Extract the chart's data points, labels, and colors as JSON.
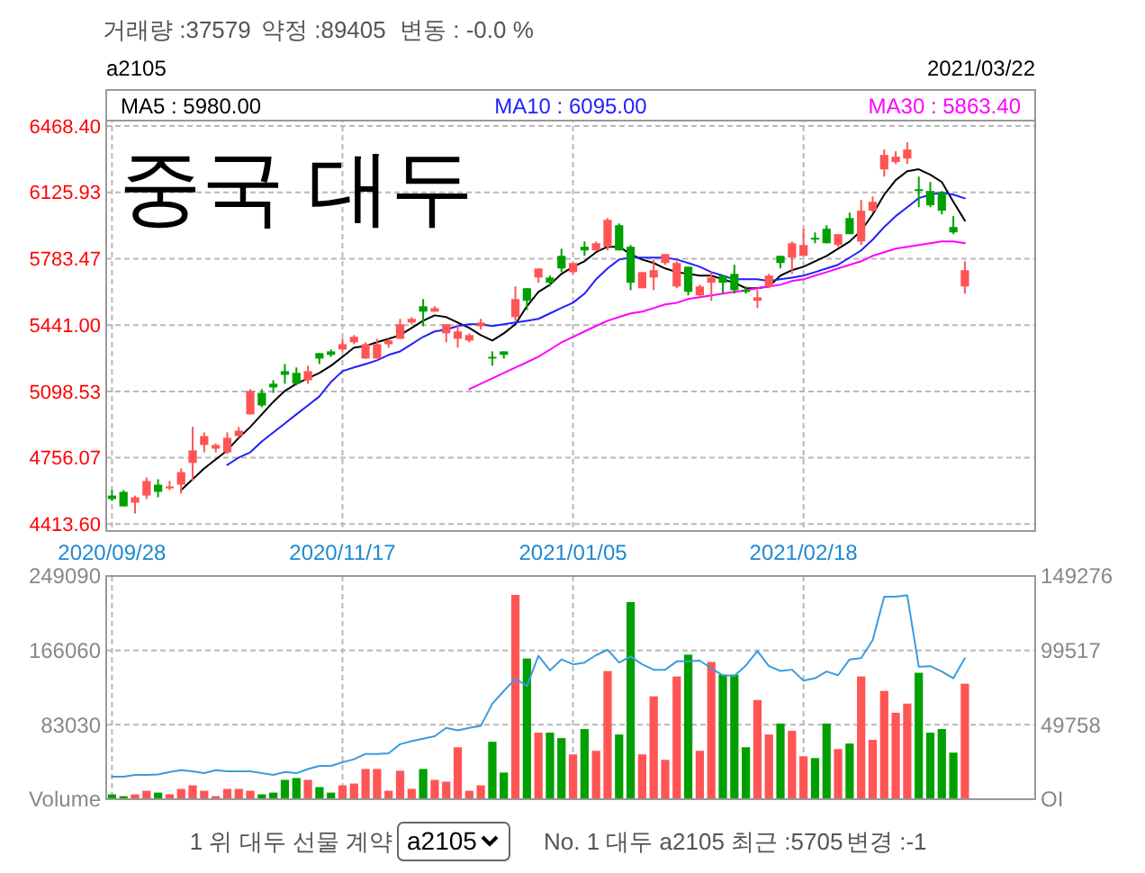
{
  "chart_data": [
    {
      "type": "candlestick",
      "title": "a2105",
      "subtitle": "2021/03/22",
      "annotations": [
        "중국 대두",
        "거래량 :37579",
        "약정 :89405",
        "변동 : -0.0 %"
      ],
      "categories": [
        "2020/09/28",
        null,
        null,
        null,
        null,
        null,
        null,
        null,
        null,
        null,
        null,
        null,
        null,
        null,
        null,
        null,
        null,
        null,
        null,
        null,
        "2020/11/17",
        null,
        null,
        null,
        null,
        null,
        null,
        null,
        null,
        null,
        null,
        null,
        null,
        null,
        null,
        null,
        null,
        null,
        null,
        null,
        "2021/01/05",
        null,
        null,
        null,
        null,
        null,
        null,
        null,
        null,
        null,
        null,
        null,
        null,
        null,
        null,
        null,
        null,
        null,
        null,
        null,
        "2021/02/18",
        null,
        null,
        null,
        null,
        null,
        null,
        null,
        null,
        null,
        null,
        null,
        null,
        null,
        null
      ],
      "ohlc": [
        [
          4561,
          4589,
          4533,
          4543
        ],
        [
          4580,
          4589,
          4505,
          4505
        ],
        [
          4524,
          4561,
          4468,
          4552
        ],
        [
          4561,
          4654,
          4543,
          4636
        ],
        [
          4617,
          4645,
          4552,
          4580
        ],
        [
          4598,
          4636,
          4589,
          4608
        ],
        [
          4617,
          4701,
          4571,
          4682
        ],
        [
          4729,
          4915,
          4636,
          4794
        ],
        [
          4822,
          4887,
          4784,
          4868
        ],
        [
          4803,
          4831,
          4784,
          4822
        ],
        [
          4784,
          4887,
          4775,
          4859
        ],
        [
          4868,
          4915,
          4859,
          4896
        ],
        [
          4980,
          5110,
          4980,
          5101
        ],
        [
          5091,
          5110,
          5017,
          5026
        ],
        [
          5138,
          5156,
          5091,
          5119
        ],
        [
          5203,
          5240,
          5138,
          5184
        ],
        [
          5194,
          5222,
          5129,
          5138
        ],
        [
          5156,
          5231,
          5138,
          5203
        ],
        [
          5296,
          5296,
          5240,
          5268
        ],
        [
          5305,
          5315,
          5277,
          5287
        ],
        [
          5315,
          5370,
          5305,
          5342
        ],
        [
          5352,
          5389,
          5342,
          5380
        ],
        [
          5268,
          5352,
          5268,
          5342
        ],
        [
          5268,
          5370,
          5268,
          5342
        ],
        [
          5342,
          5370,
          5324,
          5361
        ],
        [
          5370,
          5473,
          5370,
          5445
        ],
        [
          5454,
          5482,
          5445,
          5473
        ],
        [
          5538,
          5575,
          5435,
          5510
        ],
        [
          5510,
          5538,
          5510,
          5528
        ],
        [
          5398,
          5445,
          5352,
          5445
        ],
        [
          5370,
          5445,
          5324,
          5408
        ],
        [
          5361,
          5398,
          5352,
          5389
        ],
        [
          5435,
          5473,
          5417,
          5454
        ],
        [
          5277,
          5305,
          5231,
          5268
        ],
        [
          5305,
          5305,
          5268,
          5287
        ],
        [
          5482,
          5640,
          5463,
          5575
        ],
        [
          5631,
          5631,
          5519,
          5566
        ],
        [
          5686,
          5733,
          5659,
          5733
        ],
        [
          5686,
          5696,
          5640,
          5659
        ],
        [
          5798,
          5835,
          5714,
          5733
        ],
        [
          5714,
          5761,
          5705,
          5761
        ],
        [
          5845,
          5872,
          5798,
          5826
        ],
        [
          5826,
          5872,
          5826,
          5863
        ],
        [
          5845,
          5993,
          5826,
          5984
        ],
        [
          5956,
          5965,
          5826,
          5826
        ],
        [
          5845,
          5854,
          5621,
          5659
        ],
        [
          5631,
          5714,
          5631,
          5714
        ],
        [
          5686,
          5779,
          5621,
          5724
        ],
        [
          5761,
          5807,
          5752,
          5807
        ],
        [
          5640,
          5770,
          5631,
          5761
        ],
        [
          5742,
          5742,
          5594,
          5612
        ],
        [
          5594,
          5649,
          5584,
          5640
        ],
        [
          5659,
          5714,
          5566,
          5686
        ],
        [
          5696,
          5696,
          5603,
          5659
        ],
        [
          5705,
          5752,
          5603,
          5621
        ],
        [
          5621,
          5640,
          5603,
          5612
        ],
        [
          5566,
          5621,
          5528,
          5584
        ],
        [
          5640,
          5705,
          5631,
          5696
        ],
        [
          5798,
          5798,
          5733,
          5761
        ],
        [
          5789,
          5872,
          5705,
          5863
        ],
        [
          5798,
          5938,
          5798,
          5854
        ],
        [
          5891,
          5919,
          5863,
          5882
        ],
        [
          5938,
          5956,
          5863,
          5863
        ],
        [
          5854,
          5910,
          5845,
          5910
        ],
        [
          5993,
          6021,
          5910,
          5910
        ],
        [
          5872,
          6086,
          5854,
          6031
        ],
        [
          6031,
          6105,
          6021,
          6077
        ],
        [
          6244,
          6347,
          6207,
          6319
        ],
        [
          6282,
          6338,
          6272,
          6310
        ],
        [
          6300,
          6384,
          6272,
          6347
        ],
        [
          6142,
          6207,
          6049,
          6133
        ],
        [
          6133,
          6179,
          6049,
          6059
        ],
        [
          6124,
          6133,
          6012,
          6031
        ],
        [
          5947,
          6003,
          5910,
          5919
        ],
        [
          5640,
          5770,
          5603,
          5724
        ]
      ],
      "colors": [
        "#00a000",
        "#00a000",
        "#ff5555",
        "#ff5555",
        "#00a000",
        "#ff5555",
        "#ff5555",
        "#ff5555",
        "#ff5555",
        "#ff5555",
        "#ff5555",
        "#ff5555",
        "#ff5555",
        "#00a000",
        "#00a000",
        "#00a000",
        "#00a000",
        "#ff5555",
        "#00a000",
        "#00a000",
        "#ff5555",
        "#ff5555",
        "#ff5555",
        "#ff5555",
        "#ff5555",
        "#ff5555",
        "#ff5555",
        "#00a000",
        "#ff5555",
        "#ff5555",
        "#ff5555",
        "#ff5555",
        "#ff5555",
        "#00a000",
        "#00a000",
        "#ff5555",
        "#00a000",
        "#ff5555",
        "#00a000",
        "#00a000",
        "#ff5555",
        "#00a000",
        "#ff5555",
        "#ff5555",
        "#00a000",
        "#00a000",
        "#ff5555",
        "#ff5555",
        "#ff5555",
        "#ff5555",
        "#00a000",
        "#ff5555",
        "#ff5555",
        "#00a000",
        "#00a000",
        "#00a000",
        "#ff5555",
        "#ff5555",
        "#00a000",
        "#ff5555",
        "#ff5555",
        "#00a000",
        "#00a000",
        "#ff5555",
        "#00a000",
        "#ff5555",
        "#ff5555",
        "#ff5555",
        "#ff5555",
        "#ff5555",
        "#00a000",
        "#00a000",
        "#00a000",
        "#00a000",
        "#ff5555"
      ],
      "series": [
        {
          "type": "line",
          "name": "MA5 : 5980.00",
          "color": "#000000",
          "values": [
            null,
            null,
            null,
            null,
            null,
            null,
            4589,
            4645,
            4701,
            4747,
            4794,
            4859,
            4915,
            4980,
            5045,
            5101,
            5138,
            5166,
            5194,
            5231,
            5277,
            5324,
            5333,
            5352,
            5370,
            5389,
            5426,
            5463,
            5491,
            5482,
            5454,
            5426,
            5389,
            5361,
            5398,
            5445,
            5538,
            5612,
            5649,
            5705,
            5742,
            5770,
            5817,
            5845,
            5845,
            5807,
            5779,
            5761,
            5733,
            5714,
            5705,
            5696,
            5696,
            5677,
            5659,
            5631,
            5631,
            5640,
            5696,
            5724,
            5742,
            5770,
            5798,
            5835,
            5872,
            5928,
            6012,
            6114,
            6189,
            6235,
            6245,
            6217,
            6179,
            6077,
            5980
          ]
        },
        {
          "type": "line",
          "name": "MA10 : 6095.00",
          "color": "#2020ff",
          "values": [
            null,
            null,
            null,
            null,
            null,
            null,
            null,
            null,
            null,
            null,
            4719,
            4757,
            4784,
            4840,
            4887,
            4933,
            4980,
            5026,
            5073,
            5147,
            5203,
            5222,
            5240,
            5259,
            5287,
            5305,
            5342,
            5380,
            5408,
            5417,
            5436,
            5445,
            5445,
            5436,
            5445,
            5454,
            5463,
            5473,
            5501,
            5529,
            5556,
            5603,
            5677,
            5733,
            5779,
            5789,
            5789,
            5789,
            5789,
            5779,
            5761,
            5742,
            5714,
            5696,
            5677,
            5677,
            5677,
            5668,
            5677,
            5686,
            5696,
            5714,
            5733,
            5752,
            5789,
            5826,
            5882,
            5947,
            6003,
            6049,
            6096,
            6114,
            6124,
            6114,
            6095
          ]
        },
        {
          "type": "line",
          "name": "MA30 : 5863.40",
          "color": "#ff00ff",
          "values": [
            null,
            null,
            null,
            null,
            null,
            null,
            null,
            null,
            null,
            null,
            null,
            null,
            null,
            null,
            null,
            null,
            null,
            null,
            null,
            null,
            null,
            null,
            null,
            null,
            null,
            null,
            null,
            null,
            null,
            null,
            null,
            5110,
            5138,
            5166,
            5194,
            5222,
            5249,
            5277,
            5314,
            5352,
            5380,
            5408,
            5436,
            5463,
            5482,
            5501,
            5510,
            5528,
            5547,
            5556,
            5575,
            5584,
            5594,
            5603,
            5612,
            5621,
            5631,
            5640,
            5649,
            5668,
            5677,
            5696,
            5714,
            5733,
            5752,
            5770,
            5798,
            5817,
            5835,
            5845,
            5854,
            5863,
            5872,
            5872,
            5863.4
          ]
        }
      ],
      "ylim": [
        4378,
        6654
      ],
      "yticks": [
        {
          "value": 4413.6,
          "label": "4413.60"
        },
        {
          "value": 4756.07,
          "label": "4756.07"
        },
        {
          "value": 5098.53,
          "label": "5098.53"
        },
        {
          "value": 5441,
          "label": "5441.00"
        },
        {
          "value": 5783.47,
          "label": "5783.47"
        },
        {
          "value": 6125.93,
          "label": "6125.93"
        },
        {
          "value": 6468.4,
          "label": "6468.40"
        }
      ],
      "grid": true,
      "legend": "top"
    },
    {
      "type": "bar",
      "annotations": [
        "1 위 대두 선물 계약",
        "a2105",
        "No. 1 대두 a2105 최근 :5705",
        "변경 :-1"
      ],
      "categories": [
        "2020/09/28",
        null,
        null,
        null,
        null,
        null,
        null,
        null,
        null,
        null,
        null,
        null,
        null,
        null,
        null,
        null,
        null,
        null,
        null,
        null,
        "2020/11/17",
        null,
        null,
        null,
        null,
        null,
        null,
        null,
        null,
        null,
        null,
        null,
        null,
        null,
        null,
        null,
        null,
        null,
        null,
        null,
        "2021/01/05",
        null,
        null,
        null,
        null,
        null,
        null,
        null,
        null,
        null,
        null,
        null,
        null,
        null,
        null,
        null,
        null,
        null,
        null,
        null,
        "2021/02/18",
        null,
        null,
        null,
        null,
        null,
        null,
        null,
        null,
        null,
        null,
        null,
        null,
        null,
        null
      ],
      "series": [
        {
          "values": [
            5400,
            3400,
            5400,
            9450,
            7400,
            5400,
            11500,
            15500,
            9450,
            3400,
            11500,
            11500,
            9450,
            5400,
            7400,
            21600,
            23600,
            21600,
            13500,
            7400,
            15500,
            17500,
            33750,
            33750,
            9450,
            31700,
            11500,
            33750,
            21600,
            19600,
            58000,
            9450,
            15500,
            64100,
            29700,
            228000,
            157000,
            74250,
            74250,
            68200,
            50000,
            78300,
            54000,
            143000,
            72200,
            220000,
            50000,
            114800,
            43900,
            137000,
            161300,
            54000,
            153200,
            139000,
            139000,
            58000,
            110700,
            72200,
            84400,
            76300,
            47900,
            45900,
            84400,
            56000,
            62100,
            137000,
            66200,
            120800,
            96500,
            106700,
            141100,
            74250,
            78300,
            52000,
            128900
          ],
          "colors": [
            "#00a000",
            "#00a000",
            "#ff5555",
            "#ff5555",
            "#00a000",
            "#ff5555",
            "#ff5555",
            "#ff5555",
            "#ff5555",
            "#ff5555",
            "#ff5555",
            "#ff5555",
            "#ff5555",
            "#00a000",
            "#00a000",
            "#00a000",
            "#00a000",
            "#ff5555",
            "#00a000",
            "#00a000",
            "#ff5555",
            "#ff5555",
            "#ff5555",
            "#ff5555",
            "#ff5555",
            "#ff5555",
            "#ff5555",
            "#00a000",
            "#ff5555",
            "#ff5555",
            "#ff5555",
            "#ff5555",
            "#ff5555",
            "#00a000",
            "#00a000",
            "#ff5555",
            "#00a000",
            "#ff5555",
            "#00a000",
            "#00a000",
            "#ff5555",
            "#00a000",
            "#ff5555",
            "#ff5555",
            "#00a000",
            "#00a000",
            "#ff5555",
            "#ff5555",
            "#ff5555",
            "#ff5555",
            "#00a000",
            "#ff5555",
            "#ff5555",
            "#00a000",
            "#00a000",
            "#00a000",
            "#ff5555",
            "#ff5555",
            "#00a000",
            "#ff5555",
            "#ff5555",
            "#00a000",
            "#00a000",
            "#ff5555",
            "#00a000",
            "#ff5555",
            "#ff5555",
            "#ff5555",
            "#ff5555",
            "#ff5555",
            "#00a000",
            "#00a000",
            "#00a000",
            "#00a000",
            "#ff5555"
          ]
        },
        {
          "type": "line",
          "axis": "y2",
          "color": "#3b9be0",
          "values": [
            15000,
            15000,
            16200,
            16200,
            16600,
            18200,
            19400,
            18600,
            17400,
            19400,
            18600,
            18600,
            18600,
            17400,
            16200,
            18200,
            17400,
            20200,
            22300,
            22300,
            24700,
            26700,
            30300,
            30300,
            30700,
            36800,
            38800,
            40500,
            42100,
            47700,
            46100,
            47700,
            49000,
            63900,
            72400,
            80500,
            75700,
            95900,
            86200,
            93500,
            90200,
            91400,
            96300,
            99900,
            91400,
            95500,
            90200,
            86600,
            86600,
            92200,
            92200,
            92700,
            87400,
            82900,
            82500,
            89400,
            99100,
            89000,
            85800,
            86600,
            79300,
            80900,
            85400,
            82900,
            93500,
            94300,
            106400,
            135500,
            135500,
            136400,
            88600,
            89000,
            85400,
            80900,
            94300
          ]
        }
      ],
      "ylim": [
        0,
        249090
      ],
      "yticks": [
        {
          "value": 0,
          "label": "Volume"
        },
        83030,
        166060,
        249090
      ],
      "y2lim": [
        0,
        149276
      ],
      "y2ticks": [
        {
          "value": 0,
          "label": "OI"
        },
        49758,
        99517,
        149276
      ],
      "grid": true,
      "tick_labels": "y"
    }
  ]
}
